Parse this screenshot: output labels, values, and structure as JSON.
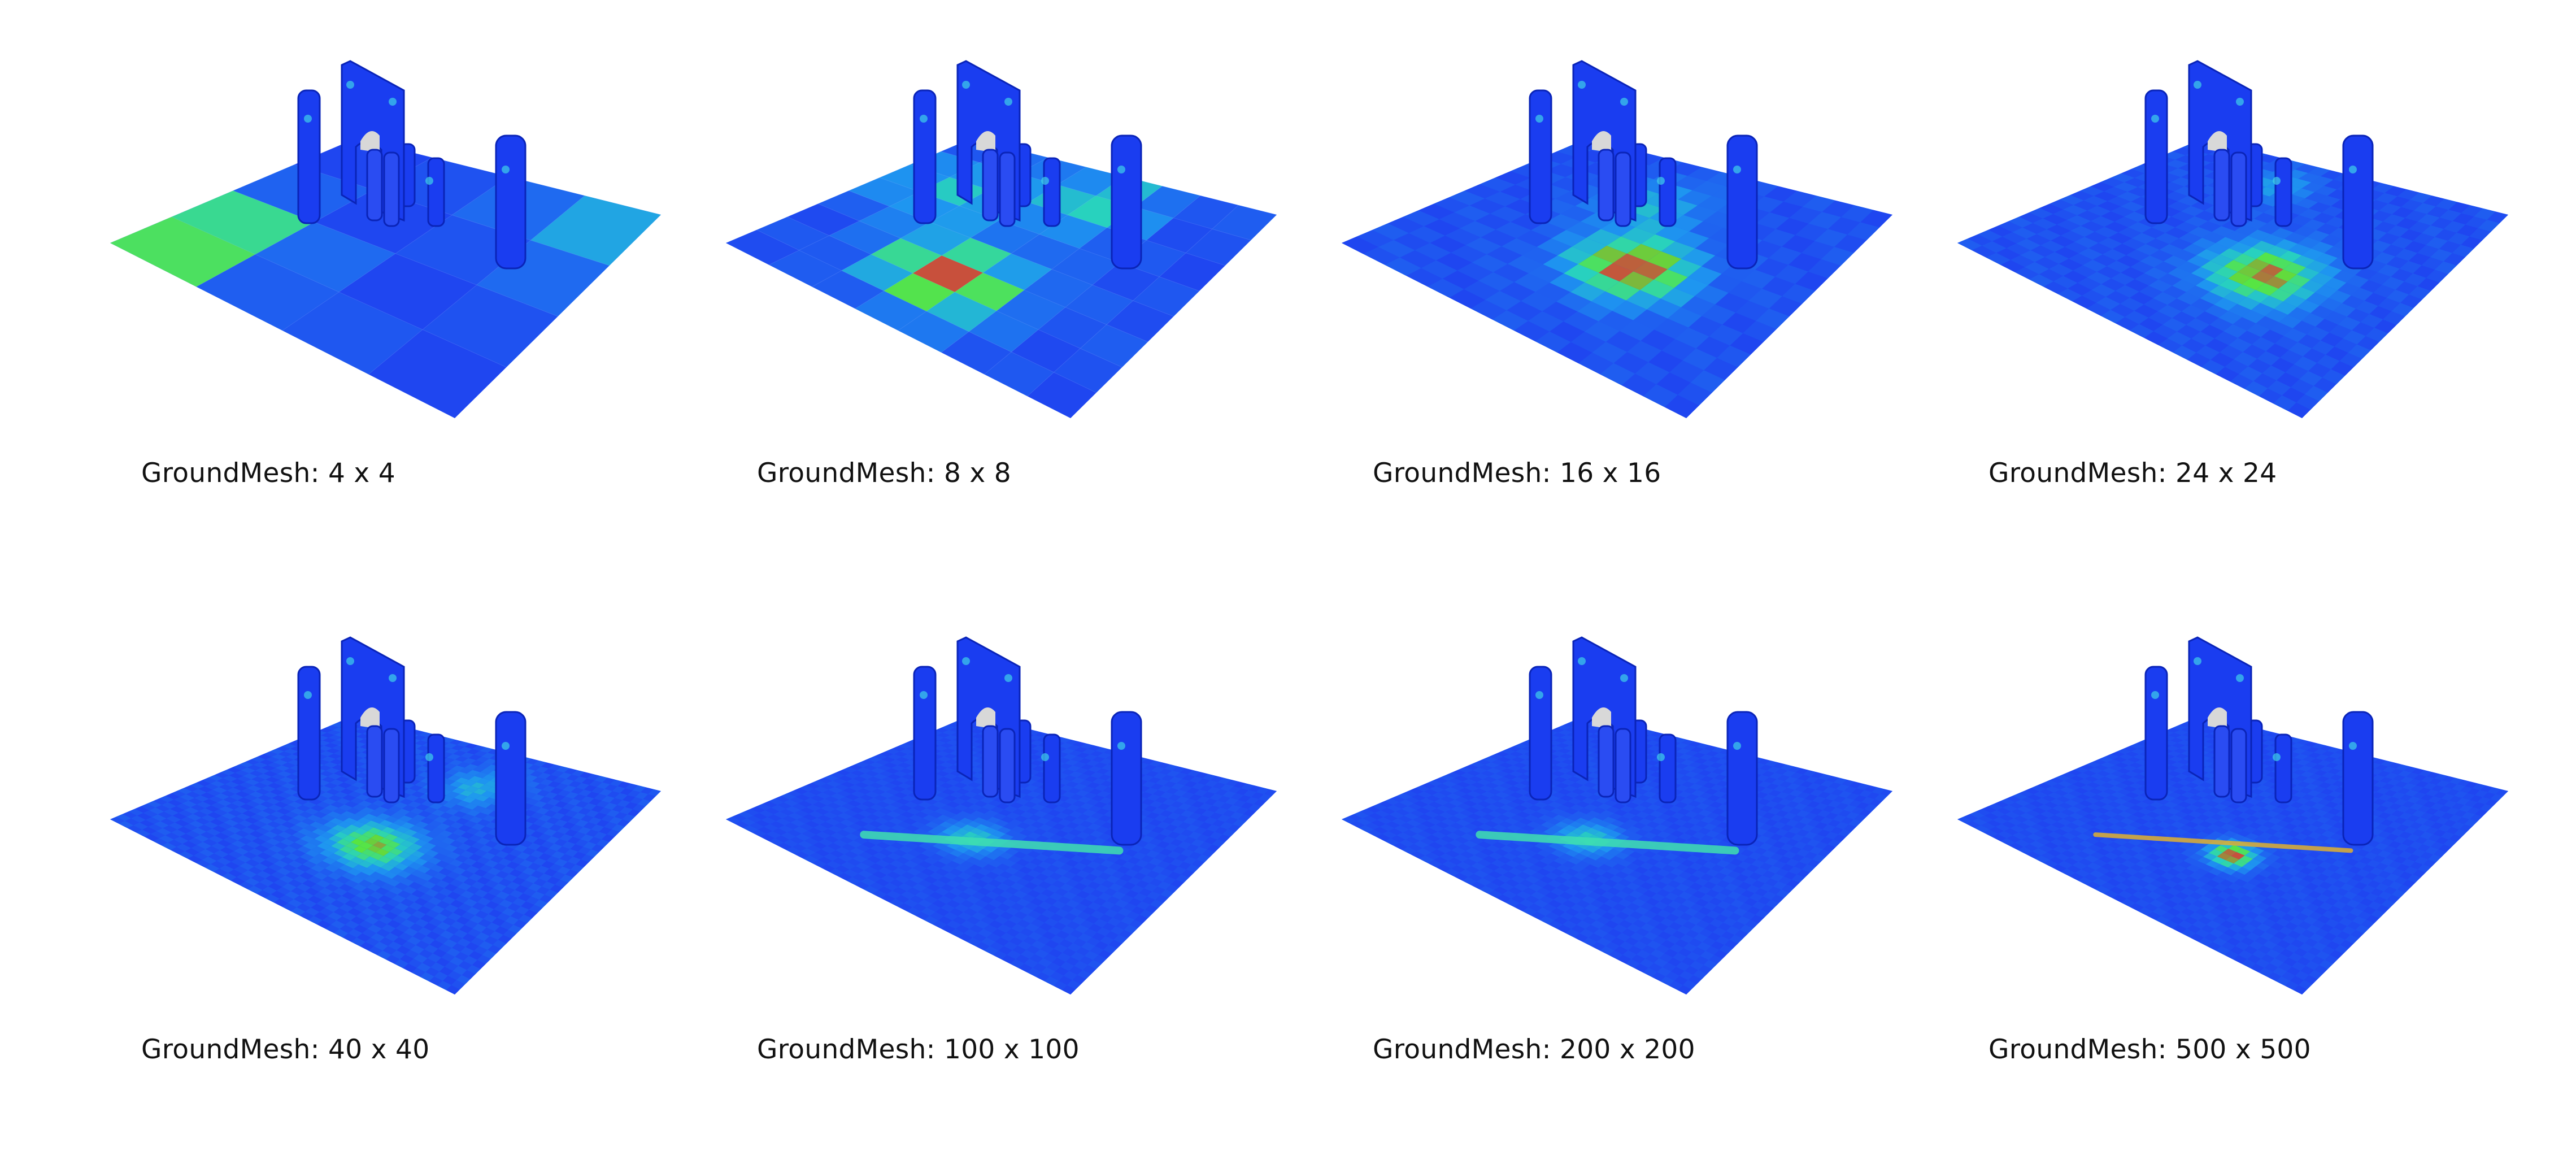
{
  "figure": {
    "panels": [
      {
        "label": "GroundMesh: 4 x 4",
        "grid": 4
      },
      {
        "label": "GroundMesh: 8 x 8",
        "grid": 8
      },
      {
        "label": "GroundMesh: 16 x 16",
        "grid": 16
      },
      {
        "label": "GroundMesh: 24 x 24",
        "grid": 24
      },
      {
        "label": "GroundMesh: 40 x 40",
        "grid": 40
      },
      {
        "label": "GroundMesh: 100 x 100",
        "grid": 100
      },
      {
        "label": "GroundMesh: 200 x 200",
        "grid": 200
      },
      {
        "label": "GroundMesh: 500 x 500",
        "grid": 500
      }
    ],
    "colors": {
      "base_blue": "#1f5cff",
      "deep_blue": "#0f2fe8",
      "cyan": "#1fd0d0",
      "green": "#4de83a",
      "red": "#d03a2a",
      "gray": "#8c7f7a",
      "arch_blue": "#1a3df0"
    }
  }
}
